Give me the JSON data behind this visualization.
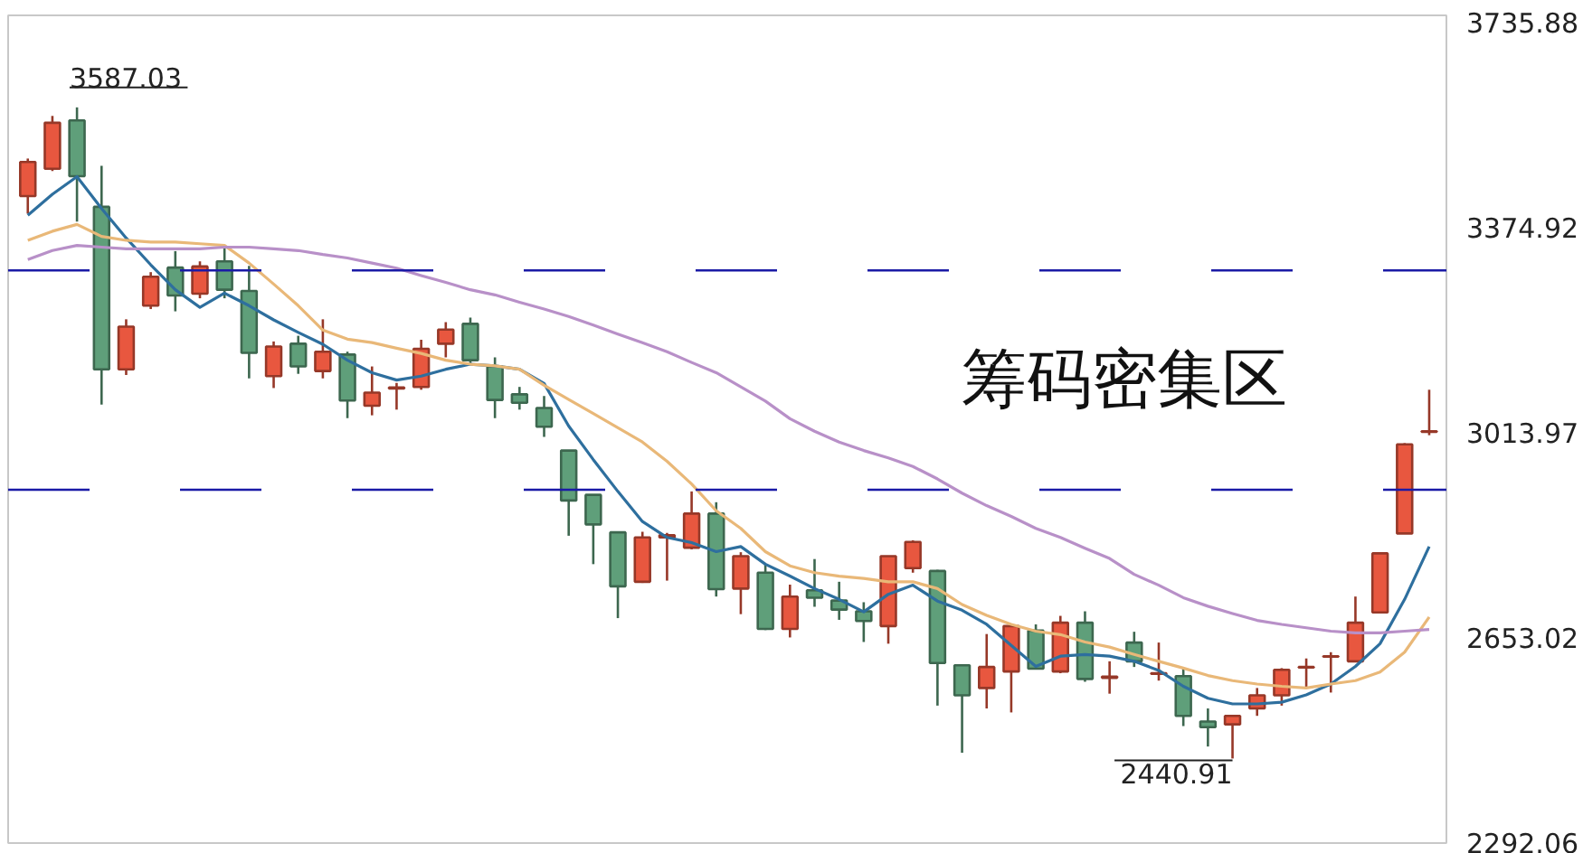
{
  "chart_data": {
    "type": "candlestick",
    "categories": [
      null,
      null,
      null,
      null,
      null,
      null,
      null,
      null,
      null,
      null,
      null,
      null,
      null,
      null,
      null,
      null,
      null,
      null,
      null,
      null,
      null,
      null,
      null,
      null,
      null,
      null,
      null,
      null,
      null,
      null,
      null,
      null,
      null,
      null,
      null,
      null,
      null,
      null,
      null,
      null,
      null,
      null,
      null,
      null,
      null,
      null,
      null,
      null,
      null,
      null,
      null,
      null,
      null,
      null,
      null,
      null,
      null,
      null
    ],
    "ohlc": [
      [
        3431,
        3497,
        3400,
        3491
      ],
      [
        3479,
        3572,
        3475,
        3560
      ],
      [
        3564,
        3587.03,
        3386,
        3466
      ],
      [
        3412,
        3484,
        3064,
        3126
      ],
      [
        3126,
        3214,
        3116,
        3201
      ],
      [
        3238,
        3297,
        3232,
        3289
      ],
      [
        3305,
        3334,
        3228,
        3256
      ],
      [
        3259,
        3316,
        3251,
        3307
      ],
      [
        3316,
        3339,
        3251,
        3266
      ],
      [
        3264,
        3308,
        3110,
        3155
      ],
      [
        3114,
        3175,
        3093,
        3166
      ],
      [
        3171,
        3185,
        3118,
        3131
      ],
      [
        3123,
        3214,
        3110,
        3157
      ],
      [
        3152,
        3157,
        3040,
        3071
      ],
      [
        3062,
        3131,
        3045,
        3085
      ],
      [
        3092,
        3102,
        3055,
        3094
      ],
      [
        3095,
        3178,
        3090,
        3162
      ],
      [
        3171,
        3209,
        3147,
        3196
      ],
      [
        3206,
        3217,
        3136,
        3142
      ],
      [
        3131,
        3147,
        3040,
        3072
      ],
      [
        3082,
        3095,
        3055,
        3067
      ],
      [
        3058,
        3079,
        3007,
        3025
      ],
      [
        2983,
        2983,
        2833,
        2895
      ],
      [
        2905,
        2905,
        2783,
        2853
      ],
      [
        2839,
        2839,
        2688,
        2744
      ],
      [
        2752,
        2840,
        2750,
        2830
      ],
      [
        2830,
        2838,
        2754,
        2834
      ],
      [
        2812,
        2911,
        2809,
        2872
      ],
      [
        2872,
        2892,
        2726,
        2739
      ],
      [
        2740,
        2804,
        2695,
        2797
      ],
      [
        2768,
        2783,
        2667,
        2669
      ],
      [
        2669,
        2747,
        2654,
        2726
      ],
      [
        2737,
        2792,
        2708,
        2724
      ],
      [
        2719,
        2752,
        2685,
        2703
      ],
      [
        2700,
        2716,
        2646,
        2683
      ],
      [
        2674,
        2797,
        2643,
        2797
      ],
      [
        2776,
        2825,
        2768,
        2822
      ],
      [
        2771,
        2773,
        2534,
        2609
      ],
      [
        2605,
        2605,
        2451,
        2552
      ],
      [
        2565,
        2660,
        2529,
        2602
      ],
      [
        2594,
        2674,
        2522,
        2674
      ],
      [
        2666,
        2677,
        2599,
        2599
      ],
      [
        2594,
        2692,
        2591,
        2680
      ],
      [
        2680,
        2700,
        2576,
        2581
      ],
      [
        2583,
        2612,
        2555,
        2585
      ],
      [
        2645,
        2664,
        2602,
        2612
      ],
      [
        2590,
        2645,
        2578,
        2591
      ],
      [
        2586,
        2600,
        2498,
        2516
      ],
      [
        2506,
        2529,
        2462,
        2496
      ],
      [
        2501,
        2516,
        2440.91,
        2516
      ],
      [
        2529,
        2565,
        2516,
        2552
      ],
      [
        2552,
        2600,
        2534,
        2597
      ],
      [
        2601,
        2617,
        2565,
        2602
      ],
      [
        2620,
        2628,
        2557,
        2621
      ],
      [
        2612,
        2726,
        2612,
        2680
      ],
      [
        2698,
        2802,
        2698,
        2802
      ],
      [
        2837,
        2996,
        2837,
        2994
      ],
      [
        3016,
        3090,
        3010,
        3017
      ]
    ],
    "colors": [
      "#e8573f",
      "#e8573f",
      "#5f9f7a",
      "#5f9f7a",
      "#e8573f",
      "#e8573f",
      "#5f9f7a",
      "#e8573f",
      "#5f9f7a",
      "#5f9f7a",
      "#e8573f",
      "#5f9f7a",
      "#e8573f",
      "#5f9f7a",
      "#e8573f",
      "#e8573f",
      "#e8573f",
      "#e8573f",
      "#5f9f7a",
      "#5f9f7a",
      "#5f9f7a",
      "#5f9f7a",
      "#5f9f7a",
      "#5f9f7a",
      "#5f9f7a",
      "#e8573f",
      "#e8573f",
      "#e8573f",
      "#5f9f7a",
      "#e8573f",
      "#5f9f7a",
      "#e8573f",
      "#5f9f7a",
      "#5f9f7a",
      "#5f9f7a",
      "#e8573f",
      "#e8573f",
      "#5f9f7a",
      "#5f9f7a",
      "#e8573f",
      "#e8573f",
      "#5f9f7a",
      "#e8573f",
      "#5f9f7a",
      "#e8573f",
      "#5f9f7a",
      "#e8573f",
      "#5f9f7a",
      "#5f9f7a",
      "#e8573f",
      "#e8573f",
      "#e8573f",
      "#e8573f",
      "#e8573f",
      "#e8573f",
      "#e8573f",
      "#e8573f",
      "#e8573f"
    ],
    "series": [
      {
        "type": "line",
        "color": "#2e6f9e",
        "values": [
          3397,
          3434,
          3465,
          3409,
          3357,
          3310,
          3266,
          3235,
          3260,
          3238,
          3213,
          3191,
          3170,
          3142,
          3120,
          3107,
          3114,
          3126,
          3135,
          3132,
          3126,
          3101,
          3026,
          2967,
          2911,
          2858,
          2830,
          2821,
          2805,
          2814,
          2783,
          2762,
          2740,
          2721,
          2699,
          2730,
          2746,
          2718,
          2702,
          2677,
          2640,
          2603,
          2621,
          2624,
          2621,
          2612,
          2596,
          2568,
          2547,
          2537,
          2537,
          2540,
          2553,
          2572,
          2603,
          2643,
          2721,
          2814
        ]
      },
      {
        "type": "line",
        "color": "#e9b878",
        "values": [
          3353,
          3369,
          3381,
          3360,
          3353,
          3350,
          3350,
          3347,
          3344,
          3313,
          3276,
          3238,
          3195,
          3179,
          3173,
          3163,
          3154,
          3142,
          3135,
          3132,
          3126,
          3098,
          3073,
          3048,
          3023,
          2998,
          2964,
          2924,
          2877,
          2846,
          2805,
          2780,
          2768,
          2762,
          2758,
          2752,
          2752,
          2740,
          2712,
          2693,
          2677,
          2665,
          2659,
          2646,
          2637,
          2624,
          2612,
          2600,
          2587,
          2578,
          2572,
          2568,
          2565,
          2572,
          2578,
          2593,
          2628,
          2690
        ]
      },
      {
        "type": "line",
        "color": "#b890c8",
        "values": [
          3319,
          3335,
          3344,
          3341,
          3338,
          3338,
          3338,
          3338,
          3341,
          3341,
          3338,
          3335,
          3328,
          3322,
          3313,
          3304,
          3291,
          3279,
          3266,
          3257,
          3244,
          3232,
          3219,
          3204,
          3188,
          3173,
          3157,
          3138,
          3120,
          3095,
          3070,
          3039,
          3017,
          2998,
          2983,
          2970,
          2955,
          2933,
          2908,
          2886,
          2867,
          2846,
          2830,
          2811,
          2793,
          2765,
          2746,
          2724,
          2709,
          2696,
          2684,
          2677,
          2671,
          2665,
          2662,
          2662,
          2665,
          2668
        ]
      }
    ],
    "ylim": [
      2292.06,
      3749
    ],
    "yticks": [
      2292.06,
      2653.02,
      3013.97,
      3374.92,
      3735.88
    ],
    "tick_labels": "y",
    "ref_lines": [
      {
        "axis": "y",
        "value": 3300,
        "color": "#1a1aa6",
        "line_style": "dashed"
      },
      {
        "axis": "y",
        "value": 2914,
        "color": "#1a1aa6",
        "line_style": "dashed"
      }
    ],
    "annotations": [
      "3587.03",
      "2440.91",
      "筹码密集区"
    ]
  }
}
